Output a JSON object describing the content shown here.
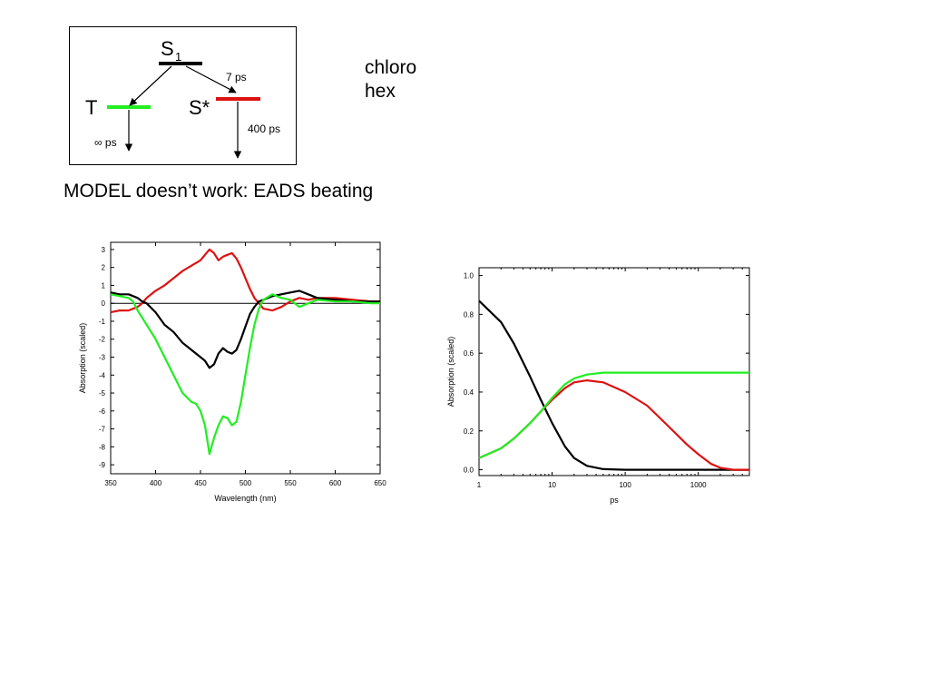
{
  "scheme": {
    "s1_label": "S",
    "s1_sub": "1",
    "t_label": "T",
    "sstar_label": "S*",
    "rate_s1_sstar": "7 ps",
    "rate_sstar": "400 ps",
    "rate_t": "∞ ps",
    "colors": {
      "s1": "#000000",
      "t": "#22ee22",
      "sstar": "#dd1111"
    }
  },
  "note": {
    "line1": "chloro",
    "line2": "hex"
  },
  "heading": "MODEL doesn’t work:  EADS beating",
  "chart_data": [
    {
      "type": "line",
      "title": "",
      "xlabel": "Wavelength (nm)",
      "ylabel": "Absorption (scaled)",
      "xlim": [
        350,
        650
      ],
      "ylim": [
        -9.5,
        3.4
      ],
      "xticks": [
        350,
        400,
        450,
        500,
        550,
        600,
        650
      ],
      "yticks": [
        3,
        2,
        1,
        0,
        -1,
        -2,
        -3,
        -4,
        -5,
        -6,
        -7,
        -8,
        -9
      ],
      "zero_line": true,
      "series": [
        {
          "color": "#dd1111",
          "x": [
            350,
            360,
            370,
            380,
            385,
            390,
            400,
            410,
            420,
            430,
            440,
            450,
            455,
            460,
            465,
            470,
            475,
            480,
            485,
            490,
            495,
            500,
            505,
            510,
            515,
            520,
            530,
            540,
            550,
            560,
            570,
            580,
            600,
            620,
            640,
            650
          ],
          "y": [
            -0.5,
            -0.4,
            -0.4,
            -0.2,
            0.0,
            0.3,
            0.7,
            1.0,
            1.4,
            1.8,
            2.1,
            2.4,
            2.7,
            3.0,
            2.8,
            2.4,
            2.6,
            2.7,
            2.8,
            2.5,
            2.0,
            1.4,
            0.8,
            0.3,
            0.0,
            -0.3,
            -0.4,
            -0.2,
            0.1,
            0.3,
            0.2,
            0.3,
            0.3,
            0.2,
            0.1,
            0.1
          ]
        },
        {
          "color": "#000000",
          "x": [
            350,
            360,
            370,
            375,
            380,
            385,
            390,
            400,
            410,
            420,
            430,
            440,
            445,
            450,
            455,
            460,
            465,
            470,
            475,
            480,
            485,
            490,
            495,
            500,
            505,
            510,
            515,
            520,
            530,
            540,
            550,
            560,
            570,
            580,
            600,
            620,
            640,
            650
          ],
          "y": [
            0.6,
            0.5,
            0.5,
            0.4,
            0.3,
            0.1,
            0.0,
            -0.5,
            -1.2,
            -1.6,
            -2.2,
            -2.6,
            -2.8,
            -3.0,
            -3.2,
            -3.6,
            -3.4,
            -2.8,
            -2.5,
            -2.7,
            -2.8,
            -2.6,
            -2.0,
            -1.3,
            -0.6,
            -0.2,
            0.1,
            0.2,
            0.4,
            0.5,
            0.6,
            0.7,
            0.5,
            0.3,
            0.2,
            0.1,
            0.1,
            0.1
          ]
        },
        {
          "color": "#22ee22",
          "x": [
            350,
            360,
            370,
            375,
            380,
            385,
            390,
            400,
            410,
            420,
            430,
            440,
            445,
            450,
            455,
            460,
            465,
            470,
            475,
            480,
            485,
            490,
            495,
            500,
            505,
            510,
            515,
            520,
            530,
            540,
            550,
            560,
            570,
            580,
            600,
            620,
            640,
            650
          ],
          "y": [
            0.5,
            0.4,
            0.3,
            0.1,
            -0.4,
            -0.8,
            -1.2,
            -2.0,
            -3.0,
            -4.0,
            -5.0,
            -5.5,
            -5.6,
            -6.0,
            -6.8,
            -8.4,
            -7.5,
            -6.8,
            -6.3,
            -6.4,
            -6.8,
            -6.6,
            -5.5,
            -4.0,
            -2.5,
            -1.2,
            -0.3,
            0.2,
            0.5,
            0.3,
            0.2,
            -0.2,
            0.0,
            0.2,
            0.1,
            0.1,
            0.0,
            0.0
          ]
        }
      ]
    },
    {
      "type": "line",
      "title": "",
      "xlabel": "ps",
      "ylabel": "Absorption (scaled)",
      "xscale": "log",
      "xlim": [
        1,
        5000
      ],
      "ylim": [
        -0.03,
        1.04
      ],
      "xticks": [
        1,
        10,
        100,
        1000
      ],
      "xticklabels": [
        "1",
        "10",
        "100",
        "1000"
      ],
      "yticks": [
        0.0,
        0.2,
        0.4,
        0.6,
        0.8,
        1.0
      ],
      "yticklabels": [
        "0.0",
        "0.2",
        "0.4",
        "0.6",
        "0.8",
        "1.0"
      ],
      "series": [
        {
          "color": "#000000",
          "x": [
            1,
            2,
            3,
            5,
            7,
            10,
            15,
            20,
            30,
            50,
            100,
            1000,
            5000
          ],
          "y": [
            0.87,
            0.76,
            0.65,
            0.48,
            0.36,
            0.24,
            0.12,
            0.06,
            0.02,
            0.003,
            0.0,
            0.0,
            0.0
          ]
        },
        {
          "color": "#dd1111",
          "x": [
            1,
            2,
            3,
            5,
            7,
            10,
            15,
            20,
            30,
            50,
            100,
            200,
            400,
            700,
            1000,
            1500,
            2000,
            3000,
            5000
          ],
          "y": [
            0.06,
            0.11,
            0.16,
            0.24,
            0.3,
            0.36,
            0.42,
            0.45,
            0.46,
            0.45,
            0.4,
            0.33,
            0.22,
            0.13,
            0.08,
            0.03,
            0.01,
            0.0,
            0.0
          ]
        },
        {
          "color": "#22ee22",
          "x": [
            1,
            2,
            3,
            5,
            7,
            10,
            15,
            20,
            30,
            50,
            100,
            1000,
            5000
          ],
          "y": [
            0.06,
            0.11,
            0.16,
            0.24,
            0.3,
            0.37,
            0.44,
            0.47,
            0.49,
            0.5,
            0.5,
            0.5,
            0.5
          ]
        }
      ]
    }
  ]
}
